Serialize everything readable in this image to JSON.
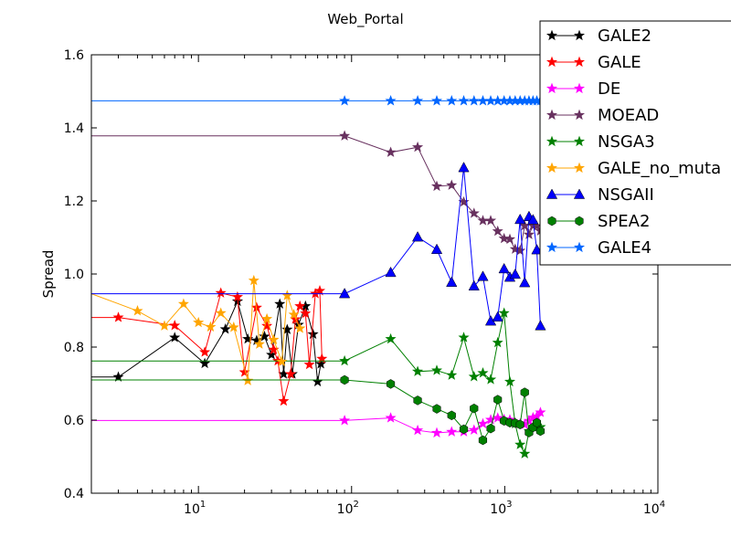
{
  "chart_data": {
    "type": "line",
    "title": "Web_Portal",
    "xlabel": "",
    "ylabel": "Spread",
    "xscale": "log",
    "xlim": [
      2,
      10000
    ],
    "ylim": [
      0.4,
      1.6
    ],
    "xticks": [
      {
        "value": 10,
        "base": "10",
        "exp": "1"
      },
      {
        "value": 100,
        "base": "10",
        "exp": "2"
      },
      {
        "value": 1000,
        "base": "10",
        "exp": "3"
      },
      {
        "value": 10000,
        "base": "10",
        "exp": "4"
      }
    ],
    "yticks": [
      "0.4",
      "0.6",
      "0.8",
      "1.0",
      "1.2",
      "1.4",
      "1.6"
    ],
    "grid": false,
    "legend_position": "top-right",
    "series": [
      {
        "name": "GALE2",
        "color": "#000000",
        "marker": "star",
        "x": [
          2,
          3,
          7,
          11,
          15,
          18,
          21,
          24,
          27,
          30,
          34,
          36,
          38,
          41,
          45,
          50,
          56,
          60,
          63
        ],
        "y": [
          0.718,
          0.718,
          0.826,
          0.755,
          0.849,
          0.925,
          0.822,
          0.818,
          0.829,
          0.779,
          0.918,
          0.726,
          0.848,
          0.726,
          0.861,
          0.912,
          0.835,
          0.705,
          0.754
        ]
      },
      {
        "name": "GALE",
        "color": "#ff0000",
        "marker": "star",
        "x": [
          2,
          3,
          7,
          11,
          14,
          18,
          20,
          24,
          28,
          31,
          33,
          36,
          40,
          43,
          46,
          50,
          53,
          58,
          62,
          64
        ],
        "y": [
          0.881,
          0.881,
          0.859,
          0.786,
          0.948,
          0.937,
          0.731,
          0.908,
          0.858,
          0.793,
          0.762,
          0.652,
          0.726,
          0.876,
          0.912,
          0.892,
          0.752,
          0.946,
          0.954,
          0.768
        ]
      },
      {
        "name": "DE",
        "color": "#ff00ff",
        "marker": "star",
        "x": [
          2,
          90,
          180,
          270,
          360,
          450,
          540,
          630,
          720,
          810,
          900,
          990,
          1080,
          1170,
          1260,
          1350,
          1440,
          1530,
          1620,
          1710
        ],
        "y": [
          0.599,
          0.599,
          0.606,
          0.572,
          0.565,
          0.568,
          0.568,
          0.573,
          0.59,
          0.601,
          0.606,
          0.602,
          0.601,
          0.592,
          0.59,
          0.588,
          0.598,
          0.607,
          0.61,
          0.621
        ]
      },
      {
        "name": "MOEAD",
        "color": "#68315f",
        "marker": "star",
        "x": [
          2,
          90,
          180,
          270,
          360,
          450,
          540,
          630,
          720,
          810,
          900,
          990,
          1080,
          1170,
          1260,
          1350,
          1440,
          1530,
          1620,
          1710
        ],
        "y": [
          1.378,
          1.378,
          1.333,
          1.347,
          1.24,
          1.243,
          1.197,
          1.166,
          1.146,
          1.146,
          1.117,
          1.097,
          1.095,
          1.068,
          1.064,
          1.132,
          1.108,
          1.132,
          1.131,
          1.118
        ]
      },
      {
        "name": "NSGA3",
        "color": "#008000",
        "marker": "star",
        "x": [
          2,
          90,
          180,
          270,
          360,
          450,
          540,
          630,
          720,
          810,
          900,
          990,
          1080,
          1170,
          1260,
          1350,
          1440,
          1530,
          1620,
          1710
        ],
        "y": [
          0.762,
          0.762,
          0.822,
          0.733,
          0.736,
          0.723,
          0.826,
          0.719,
          0.729,
          0.711,
          0.812,
          0.893,
          0.705,
          0.59,
          0.533,
          0.508,
          0.57,
          0.581,
          0.585,
          0.581
        ]
      },
      {
        "name": "GALE_no_muta",
        "color": "#ffa500",
        "marker": "star",
        "x": [
          2,
          4,
          6,
          8,
          10,
          12,
          14,
          17,
          21,
          23,
          25,
          28,
          31,
          35,
          38,
          42,
          46
        ],
        "y": [
          0.946,
          0.899,
          0.858,
          0.918,
          0.867,
          0.855,
          0.893,
          0.854,
          0.708,
          0.982,
          0.808,
          0.877,
          0.82,
          0.76,
          0.941,
          0.889,
          0.851
        ]
      },
      {
        "name": "NSGAII",
        "color": "#0000ff",
        "marker": "triangle",
        "x": [
          2,
          90,
          180,
          270,
          360,
          450,
          540,
          630,
          720,
          810,
          900,
          990,
          1080,
          1170,
          1260,
          1350,
          1440,
          1530,
          1620,
          1710
        ],
        "y": [
          0.946,
          0.946,
          1.004,
          1.101,
          1.067,
          0.977,
          1.291,
          0.967,
          0.993,
          0.871,
          0.882,
          1.014,
          0.991,
          0.999,
          1.149,
          0.976,
          1.157,
          1.148,
          1.066,
          0.858
        ]
      },
      {
        "name": "SPEA2",
        "color": "#008000",
        "marker": "hexagon",
        "x": [
          2,
          90,
          180,
          270,
          360,
          450,
          540,
          630,
          720,
          810,
          900,
          990,
          1080,
          1170,
          1260,
          1350,
          1440,
          1530,
          1620,
          1710
        ],
        "y": [
          0.71,
          0.71,
          0.699,
          0.654,
          0.631,
          0.613,
          0.575,
          0.632,
          0.545,
          0.577,
          0.656,
          0.598,
          0.593,
          0.592,
          0.588,
          0.676,
          0.566,
          0.58,
          0.593,
          0.57
        ]
      },
      {
        "name": "GALE4",
        "color": "#0066ff",
        "marker": "star",
        "x": [
          2,
          90,
          180,
          270,
          360,
          450,
          540,
          630,
          720,
          810,
          900,
          990,
          1080,
          1170,
          1260,
          1350,
          1440,
          1530,
          1620,
          1710
        ],
        "y": [
          1.474,
          1.474,
          1.474,
          1.474,
          1.474,
          1.474,
          1.474,
          1.474,
          1.474,
          1.474,
          1.474,
          1.474,
          1.474,
          1.474,
          1.474,
          1.474,
          1.474,
          1.474,
          1.474,
          1.474
        ]
      }
    ]
  }
}
